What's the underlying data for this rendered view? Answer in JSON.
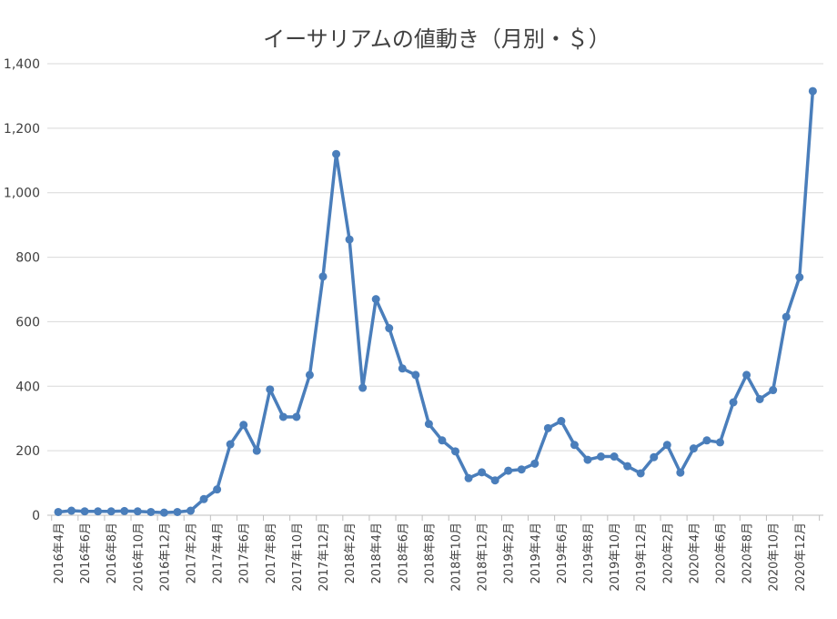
{
  "chart_data": {
    "type": "line",
    "title": "イーサリアムの値動き（月別・＄）",
    "xlabel": "",
    "ylabel": "",
    "ylim": [
      0,
      1400
    ],
    "yticks": [
      0,
      200,
      400,
      600,
      800,
      1000,
      1200,
      1400
    ],
    "ytick_labels": [
      "0",
      "200",
      "400",
      "600",
      "800",
      "1,000",
      "1,200",
      "1,400"
    ],
    "grid": true,
    "legend": "none",
    "color": "#4a7ebb",
    "x": [
      "2016年4月",
      "2016年5月",
      "2016年6月",
      "2016年7月",
      "2016年8月",
      "2016年9月",
      "2016年10月",
      "2016年11月",
      "2016年12月",
      "2017年1月",
      "2017年2月",
      "2017年3月",
      "2017年4月",
      "2017年5月",
      "2017年6月",
      "2017年7月",
      "2017年8月",
      "2017年9月",
      "2017年10月",
      "2017年11月",
      "2017年12月",
      "2018年1月",
      "2018年2月",
      "2018年3月",
      "2018年4月",
      "2018年5月",
      "2018年6月",
      "2018年7月",
      "2018年8月",
      "2018年9月",
      "2018年10月",
      "2018年11月",
      "2018年12月",
      "2019年1月",
      "2019年2月",
      "2019年3月",
      "2019年4月",
      "2019年5月",
      "2019年6月",
      "2019年7月",
      "2019年8月",
      "2019年9月",
      "2019年10月",
      "2019年11月",
      "2019年12月",
      "2020年1月",
      "2020年2月",
      "2020年3月",
      "2020年4月",
      "2020年5月",
      "2020年6月",
      "2020年7月",
      "2020年8月",
      "2020年9月",
      "2020年10月",
      "2020年11月",
      "2020年12月",
      "2021年1月"
    ],
    "x_tick_labels": [
      "2016年4月",
      "2016年6月",
      "2016年8月",
      "2016年10月",
      "2016年12月",
      "2017年2月",
      "2017年4月",
      "2017年6月",
      "2017年8月",
      "2017年10月",
      "2017年12月",
      "2018年2月",
      "2018年4月",
      "2018年6月",
      "2018年8月",
      "2018年10月",
      "2018年12月",
      "2019年2月",
      "2019年4月",
      "2019年6月",
      "2019年8月",
      "2019年10月",
      "2019年12月",
      "2020年2月",
      "2020年4月",
      "2020年6月",
      "2020年8月",
      "2020年10月",
      "2020年12月"
    ],
    "series": [
      {
        "values": [
          10,
          14,
          12,
          12,
          12,
          13,
          12,
          10,
          8,
          10,
          14,
          50,
          80,
          220,
          280,
          200,
          390,
          305,
          305,
          435,
          740,
          1120,
          855,
          395,
          670,
          580,
          455,
          435,
          283,
          232,
          198,
          115,
          133,
          108,
          138,
          142,
          160,
          270,
          292,
          218,
          172,
          182,
          182,
          152,
          130,
          180,
          218,
          132,
          207,
          232,
          226,
          350,
          435,
          360,
          388,
          615,
          738,
          1315
        ]
      }
    ]
  }
}
